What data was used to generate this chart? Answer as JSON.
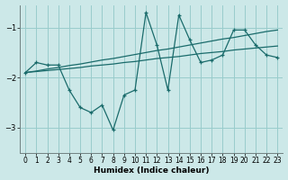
{
  "xlabel": "Humidex (Indice chaleur)",
  "xlim": [
    -0.5,
    23.5
  ],
  "ylim": [
    -3.5,
    -0.55
  ],
  "yticks": [
    -3,
    -2,
    -1
  ],
  "xticks": [
    0,
    1,
    2,
    3,
    4,
    5,
    6,
    7,
    8,
    9,
    10,
    11,
    12,
    13,
    14,
    15,
    16,
    17,
    18,
    19,
    20,
    21,
    22,
    23
  ],
  "bg_color": "#cce8e8",
  "grid_color": "#99cccc",
  "line_color": "#1a6b6b",
  "zigzag_x": [
    0,
    1,
    2,
    3,
    4,
    5,
    6,
    7,
    8,
    9,
    10,
    11,
    12,
    13,
    14,
    15,
    16,
    17,
    18,
    19,
    20,
    21,
    22,
    23
  ],
  "zigzag_y": [
    -1.9,
    -1.7,
    -1.75,
    -1.75,
    -2.25,
    -2.6,
    -2.7,
    -2.55,
    -3.05,
    -2.35,
    -2.25,
    -0.7,
    -1.35,
    -2.25,
    -0.75,
    -1.25,
    -1.7,
    -1.65,
    -1.55,
    -1.05,
    -1.05,
    -1.35,
    -1.55,
    -1.6
  ],
  "upper_x": [
    0,
    1,
    2,
    3,
    4,
    5,
    6,
    7,
    8,
    9,
    10,
    11,
    12,
    13,
    14,
    15,
    16,
    17,
    18,
    19,
    20,
    21,
    22,
    23
  ],
  "upper_y": [
    -1.9,
    -1.87,
    -1.83,
    -1.8,
    -1.76,
    -1.73,
    -1.69,
    -1.65,
    -1.62,
    -1.58,
    -1.54,
    -1.5,
    -1.46,
    -1.43,
    -1.39,
    -1.35,
    -1.31,
    -1.27,
    -1.23,
    -1.2,
    -1.16,
    -1.12,
    -1.08,
    -1.05
  ],
  "lower_x": [
    0,
    1,
    2,
    3,
    4,
    5,
    6,
    7,
    8,
    9,
    10,
    11,
    12,
    13,
    14,
    15,
    16,
    17,
    18,
    19,
    20,
    21,
    22,
    23
  ],
  "lower_y": [
    -1.9,
    -1.88,
    -1.86,
    -1.84,
    -1.82,
    -1.8,
    -1.77,
    -1.75,
    -1.73,
    -1.7,
    -1.68,
    -1.65,
    -1.62,
    -1.6,
    -1.58,
    -1.55,
    -1.52,
    -1.5,
    -1.48,
    -1.45,
    -1.43,
    -1.41,
    -1.39,
    -1.37
  ]
}
